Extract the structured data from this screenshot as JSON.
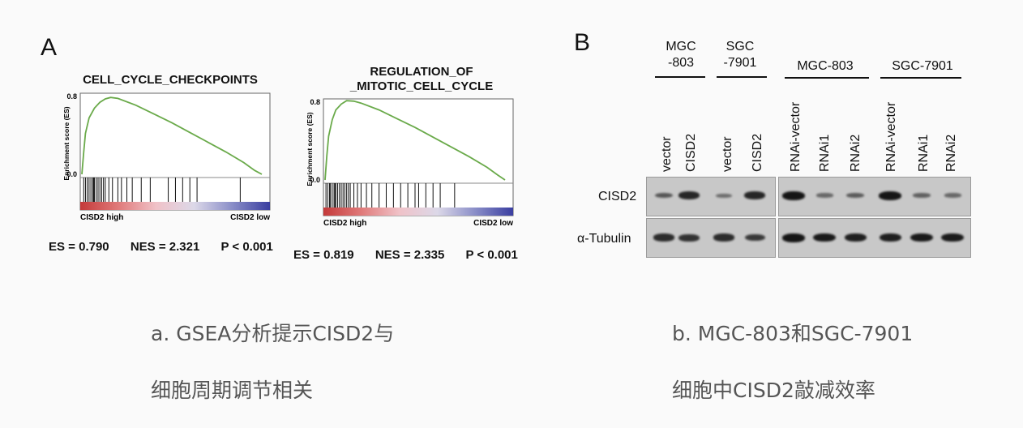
{
  "panel_a": {
    "letter": "A",
    "plots": [
      {
        "title_lines": [
          "CELL_CYCLE_CHECKPOINTS"
        ],
        "ylabel": "Enrichment score (ES)",
        "y_ticks": [
          "0.8",
          "0.0"
        ],
        "ylim": [
          0,
          0.8
        ],
        "curve": [
          [
            0,
            0
          ],
          [
            0.01,
            0.22
          ],
          [
            0.02,
            0.42
          ],
          [
            0.04,
            0.58
          ],
          [
            0.07,
            0.68
          ],
          [
            0.1,
            0.74
          ],
          [
            0.13,
            0.775
          ],
          [
            0.16,
            0.79
          ],
          [
            0.2,
            0.78
          ],
          [
            0.3,
            0.71
          ],
          [
            0.4,
            0.62
          ],
          [
            0.5,
            0.53
          ],
          [
            0.6,
            0.43
          ],
          [
            0.7,
            0.33
          ],
          [
            0.8,
            0.23
          ],
          [
            0.9,
            0.12
          ],
          [
            0.96,
            0.04
          ],
          [
            1.0,
            0.0
          ]
        ],
        "hits": [
          0.01,
          0.02,
          0.03,
          0.04,
          0.05,
          0.06,
          0.065,
          0.07,
          0.08,
          0.09,
          0.1,
          0.11,
          0.12,
          0.13,
          0.15,
          0.17,
          0.2,
          0.22,
          0.25,
          0.28,
          0.33,
          0.38,
          0.48,
          0.52,
          0.56,
          0.6,
          0.64,
          0.88
        ],
        "gradient_labels": [
          "CISD2 high",
          "CISD2 low"
        ],
        "stats": [
          "ES = 0.790",
          "NES = 2.321",
          "P < 0.001"
        ]
      },
      {
        "title_lines": [
          "REGULATION_OF",
          "_MITOTIC_CELL_CYCLE"
        ],
        "ylabel": "Enrichment score (ES)",
        "y_ticks": [
          "0.8",
          "0.0"
        ],
        "ylim": [
          0,
          0.8
        ],
        "curve": [
          [
            0,
            0
          ],
          [
            0.01,
            0.25
          ],
          [
            0.02,
            0.45
          ],
          [
            0.04,
            0.62
          ],
          [
            0.06,
            0.72
          ],
          [
            0.09,
            0.78
          ],
          [
            0.12,
            0.815
          ],
          [
            0.16,
            0.81
          ],
          [
            0.2,
            0.79
          ],
          [
            0.3,
            0.72
          ],
          [
            0.4,
            0.63
          ],
          [
            0.5,
            0.54
          ],
          [
            0.6,
            0.44
          ],
          [
            0.7,
            0.34
          ],
          [
            0.8,
            0.24
          ],
          [
            0.9,
            0.13
          ],
          [
            0.96,
            0.05
          ],
          [
            1.0,
            0.0
          ]
        ],
        "hits": [
          0.005,
          0.015,
          0.025,
          0.03,
          0.04,
          0.05,
          0.055,
          0.06,
          0.07,
          0.08,
          0.09,
          0.1,
          0.11,
          0.12,
          0.13,
          0.14,
          0.16,
          0.18,
          0.2,
          0.23,
          0.26,
          0.3,
          0.34,
          0.38,
          0.42,
          0.46,
          0.5,
          0.52,
          0.56,
          0.6,
          0.64,
          0.72
        ],
        "gradient_labels": [
          "CISD2 high",
          "CISD2 low"
        ],
        "stats": [
          "ES = 0.819",
          "NES = 2.335",
          "P < 0.001"
        ]
      }
    ],
    "caption_lines": [
      "a.   GSEA分析提示CISD2与",
      "细胞周期调节相关"
    ]
  },
  "panel_b": {
    "letter": "B",
    "groups": [
      {
        "lines": [
          "MGC",
          "-803"
        ]
      },
      {
        "lines": [
          "SGC",
          "-7901"
        ]
      },
      {
        "lines": [
          "MGC-803"
        ]
      },
      {
        "lines": [
          "SGC-7901"
        ]
      }
    ],
    "lanes": [
      "vector",
      "CISD2",
      "vector",
      "CISD2",
      "RNAi-vector",
      "RNAi1",
      "RNAi2",
      "RNAi-vector",
      "RNAi1",
      "RNAi2"
    ],
    "rows": [
      {
        "label": "CISD2",
        "relative_intensity": [
          0.45,
          0.85,
          0.25,
          0.85,
          1.0,
          0.3,
          0.4,
          1.0,
          0.35,
          0.3
        ]
      },
      {
        "label": "α-Tubulin",
        "relative_intensity": [
          0.8,
          0.75,
          0.8,
          0.7,
          1.0,
          0.95,
          0.9,
          0.9,
          0.95,
          0.95
        ]
      }
    ],
    "caption_lines": [
      "b.  MGC-803和SGC-7901",
      "细胞中CISD2敲减效率"
    ]
  },
  "colors": {
    "curve": "#6aaa4a",
    "gradient": [
      "#c43a3a",
      "#e07a7a",
      "#f0c2c8",
      "#dcd8e8",
      "#8a8ec8",
      "#3a3ea0"
    ]
  }
}
